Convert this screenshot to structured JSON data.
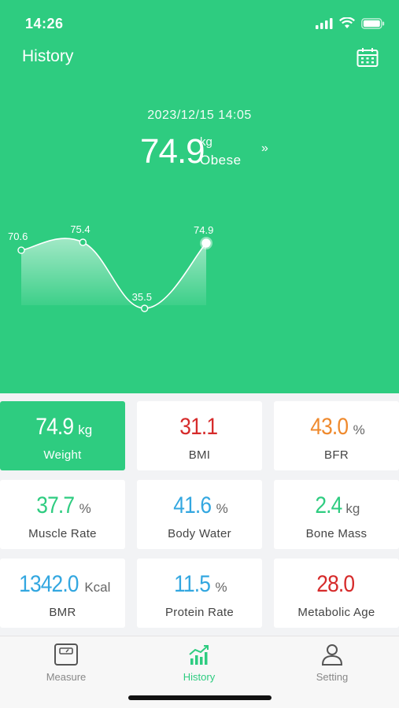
{
  "status_bar": {
    "time": "14:26"
  },
  "nav": {
    "title": "History",
    "calendar_icon": "calendar-icon"
  },
  "reading": {
    "datetime": "2023/12/15 14:05",
    "value": "74.9",
    "unit": "kg",
    "status": "Obese",
    "more_glyph": "»"
  },
  "chart_data": {
    "type": "line",
    "values": [
      70.6,
      75.4,
      35.5,
      74.9
    ],
    "labels": [
      "70.6",
      "75.4",
      "35.5",
      "74.9"
    ]
  },
  "metrics": [
    {
      "value": "74.9",
      "unit": "kg",
      "label": "Weight",
      "color": "#ffffff",
      "active": true
    },
    {
      "value": "31.1",
      "unit": "",
      "label": "BMI",
      "color": "#d62b2b"
    },
    {
      "value": "43.0",
      "unit": "%",
      "label": "BFR",
      "color": "#ef8a2e"
    },
    {
      "value": "37.7",
      "unit": "%",
      "label": "Muscle Rate",
      "color": "#2ecc80"
    },
    {
      "value": "41.6",
      "unit": "%",
      "label": "Body Water",
      "color": "#33a7e0"
    },
    {
      "value": "2.4",
      "unit": "kg",
      "label": "Bone Mass",
      "color": "#2ecc80"
    },
    {
      "value": "1342.0",
      "unit": "Kcal",
      "label": "BMR",
      "color": "#33a7e0"
    },
    {
      "value": "11.5",
      "unit": "%",
      "label": "Protein Rate",
      "color": "#33a7e0"
    },
    {
      "value": "28.0",
      "unit": "",
      "label": "Metabolic Age",
      "color": "#d62b2b"
    }
  ],
  "tabs": [
    {
      "label": "Measure",
      "icon": "scale-icon"
    },
    {
      "label": "History",
      "icon": "chart-icon",
      "active": true
    },
    {
      "label": "Setting",
      "icon": "person-icon"
    }
  ],
  "colors": {
    "accent": "#2ecc80"
  }
}
